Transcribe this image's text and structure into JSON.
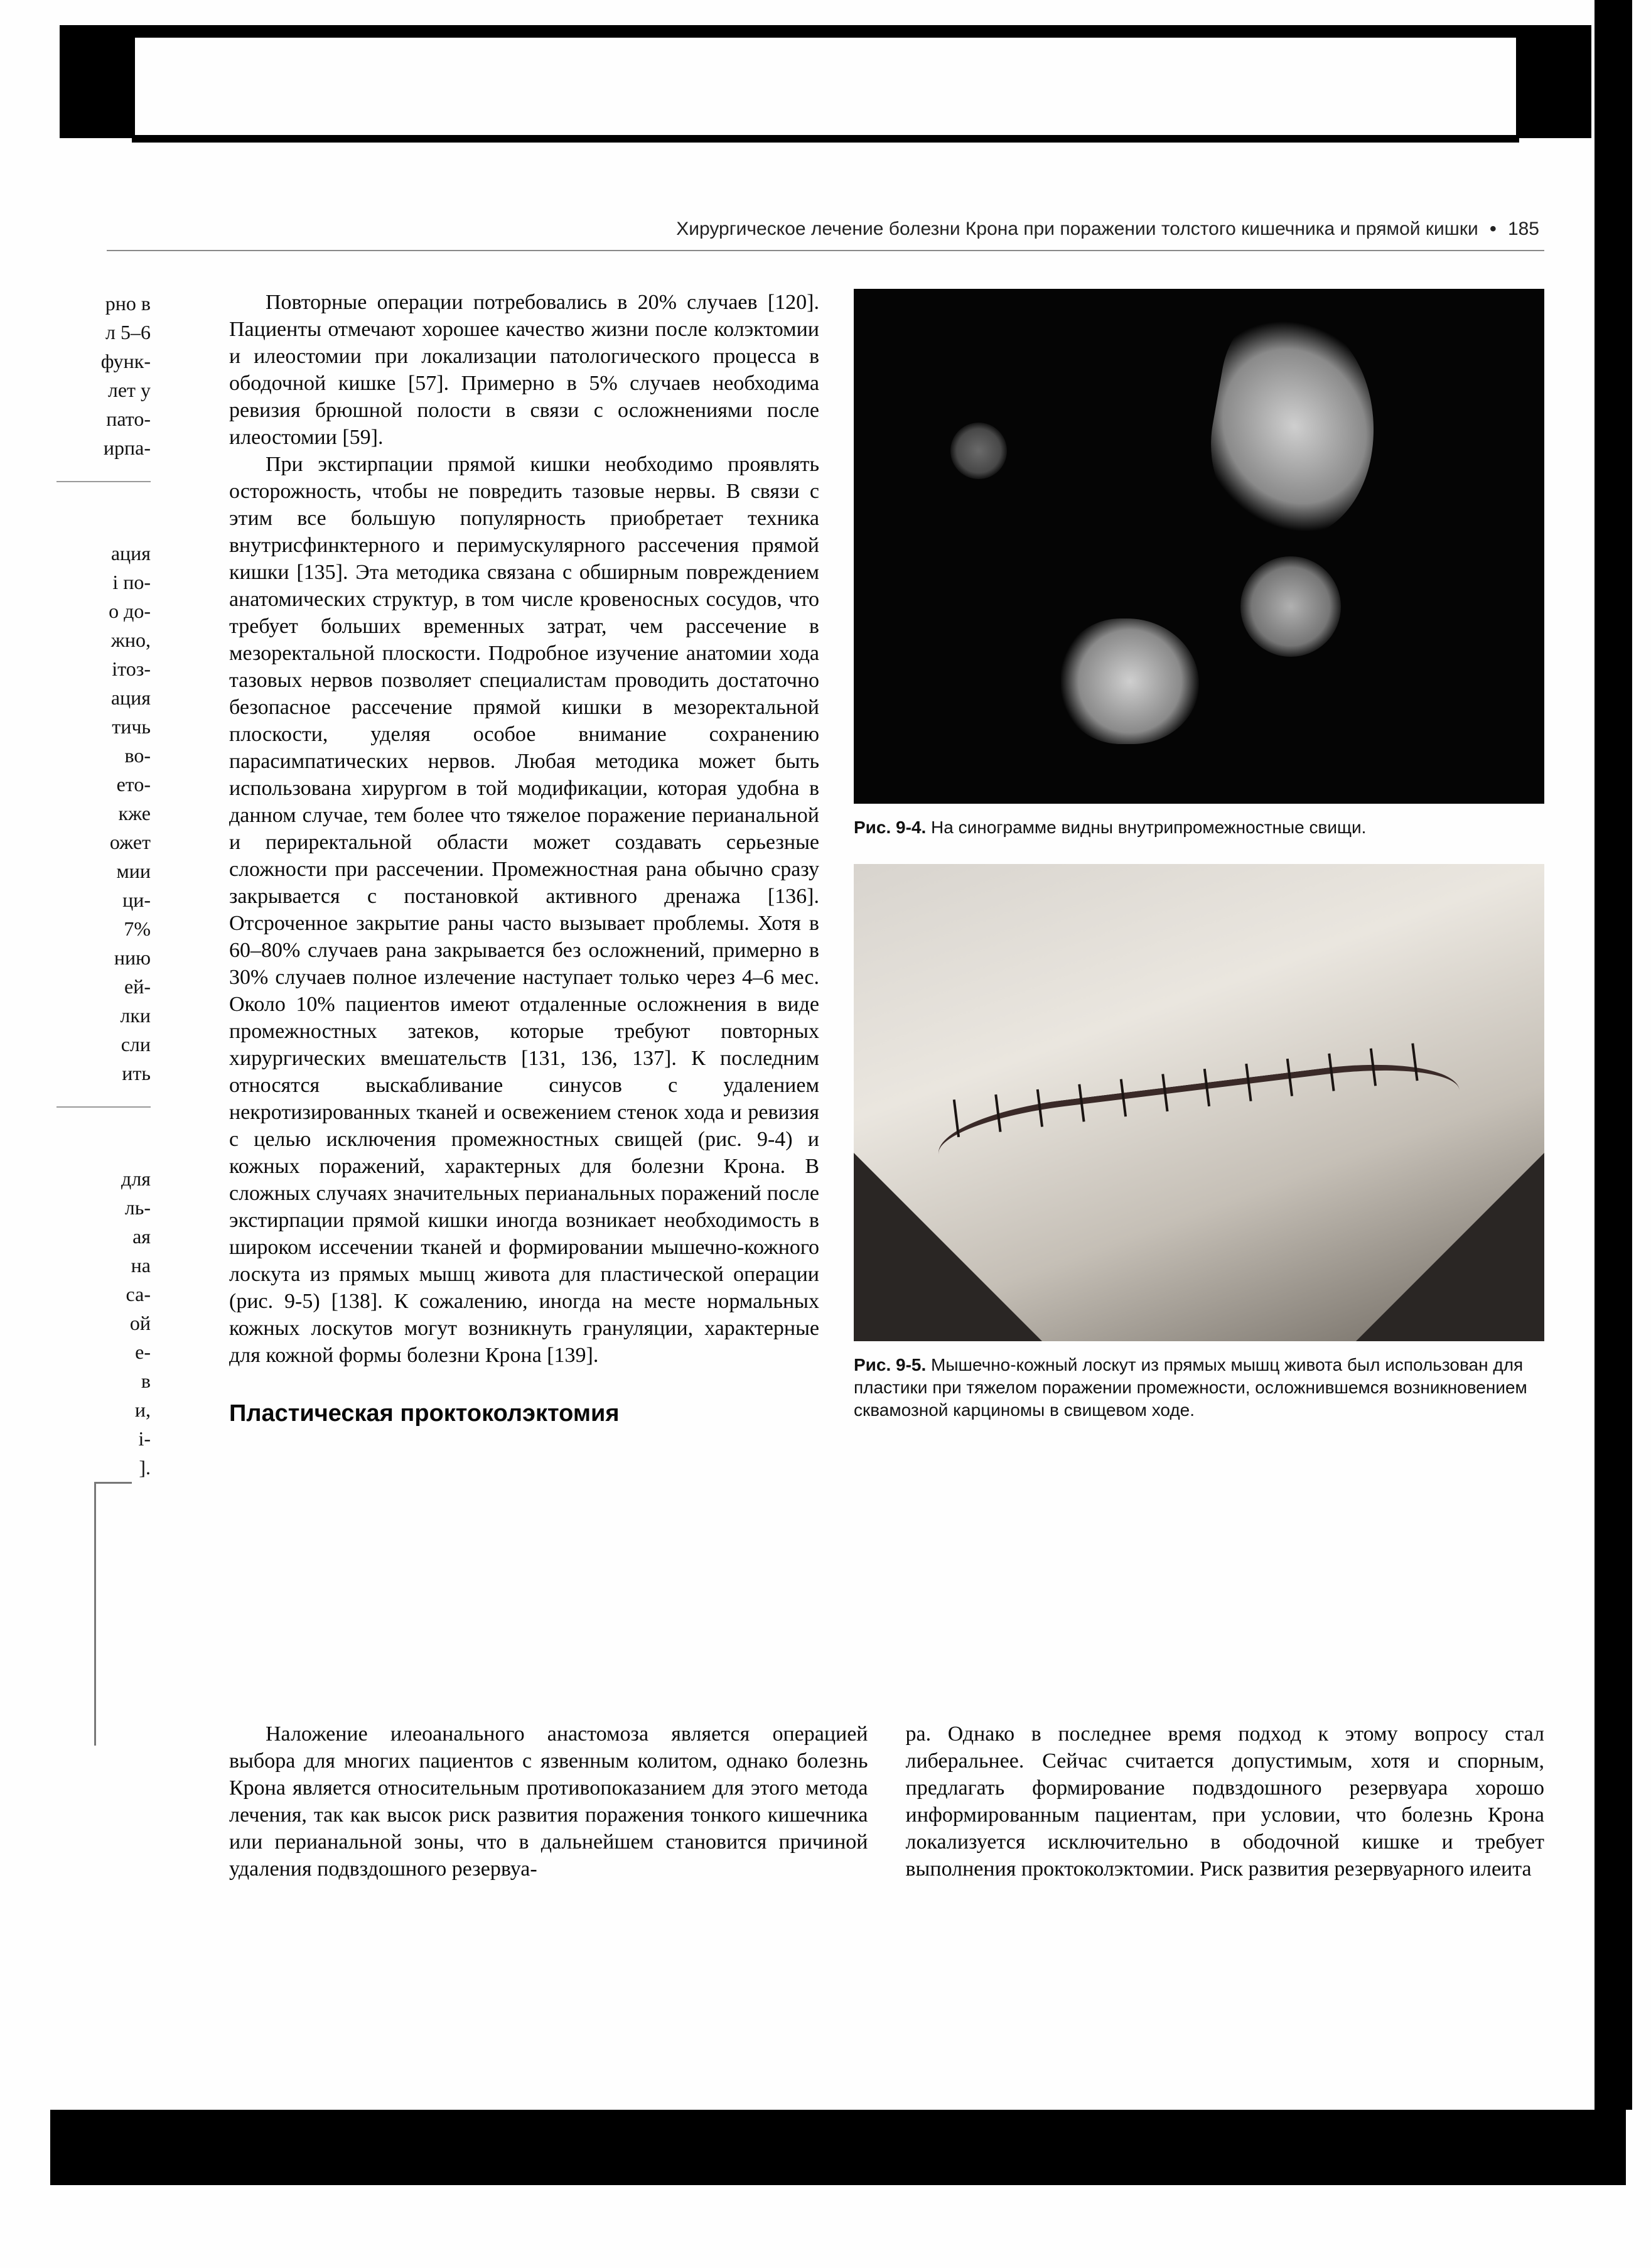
{
  "header": {
    "running_title": "Хирургическое лечение болезни Крона при поражении толстого кишечника и прямой кишки",
    "bullet": "•",
    "page_number": "185"
  },
  "gutter": {
    "block1": [
      "рно в",
      "л 5–6",
      "функ-",
      "лет у",
      "пато-",
      "ирпа-"
    ],
    "block2": [
      "ация",
      "і по-",
      "о до-",
      "жно,",
      "ітоз-",
      "ация",
      "тичь",
      "во-",
      "ето-",
      "кже",
      "ожет",
      "мии",
      "ци-",
      "7%",
      "нию",
      "ей-",
      "лки",
      "сли",
      "ить"
    ],
    "block3": [
      "для",
      "ль-",
      "ая",
      "на",
      "са-",
      "ой",
      "е-",
      "в",
      "и,",
      "і-",
      "]."
    ]
  },
  "body": {
    "p1": "Повторные операции потребовались в 20% случаев [120]. Пациенты отмечают хорошее качество жизни после колэктомии и илеостомии при локализации патологического процесса в ободочной кишке [57]. Примерно в 5% случаев необходима ревизия брюшной полости в связи с осложнениями после илеостомии [59].",
    "p2": "При экстирпации прямой кишки необходимо проявлять осторожность, чтобы не повредить тазовые нервы. В связи с этим все большую популярность приобретает техника внутрисфинктерного и перимускулярного рассечения прямой кишки [135]. Эта методика связана с обширным повреждением анатомических структур, в том числе кровеносных сосудов, что требует больших временных затрат, чем рассечение в мезоректальной плоскости. Подробное изучение анатомии хода тазовых нервов позволяет специалистам проводить достаточно безопасное рассечение прямой кишки в мезоректальной плоскости, уделяя особое внимание сохранению парасимпатических нервов. Любая методика может быть использована хирургом в той модификации, которая удобна в данном случае, тем более что тяжелое поражение перианальной и периректальной области может создавать серьезные сложности при рассечении. Промежностная рана обычно сразу закрывается с постановкой активного дренажа [136]. Отсроченное закрытие раны часто вызывает проблемы. Хотя в 60–80% случаев рана закрывается без осложнений, примерно в 30% случаев полное излечение наступает только через 4–6 мес. Около 10% пациентов имеют отдаленные осложнения в виде промежностных затеков, которые требуют повторных хирургических вмешательств [131, 136, 137]. К последним относятся выскабливание синусов с удалением некротизированных тканей и освежением стенок хода и ревизия с целью исключения промежностных свищей (рис. 9-4) и кожных поражений, характерных для болезни Крона. В сложных случаях значительных перианальных поражений после экстирпации прямой кишки иногда возникает необходимость в широком иссечении тканей и формировании мышечно-кожного лоскута из прямых мышц живота для пластической операции (рис. 9-5) [138]. К сожалению, иногда на месте нормальных кожных лоскутов могут возникнуть грануляции, характерные для кожной формы болезни Крона [139].",
    "section_head": "Пластическая проктоколэктомия",
    "p3": "Наложение илеоанального анастомоза является операцией выбора для многих пациентов с язвенным колитом, однако болезнь Крона является относительным противопоказанием для этого метода лечения, так как высок риск развития поражения тонкого кишечника или перианальной зоны, что в дальнейшем становится причиной удаления подвздошного резервуа-",
    "p4": "ра. Однако в последнее время подход к этому вопросу стал либеральнее. Сейчас считается допустимым, хотя и спорным, предлагать формирование подвздошного резервуара хорошо информированным пациентам, при условии, что болезнь Крона локализуется исключительно в ободочной кишке и требует выполнения проктоколэктомии. Риск развития резервуарного илеита"
  },
  "figures": {
    "f94_label": "Рис. 9-4.",
    "f94_text": " На синограмме видны внутрипромежностные свищи.",
    "f95_label": "Рис. 9-5.",
    "f95_text": " Мышечно-кожный лоскут из прямых мышц живота был использован для пластики при тяжелом поражении промежности, осложнившемся возникновением сквамозной карциномы в свищевом ходе."
  }
}
